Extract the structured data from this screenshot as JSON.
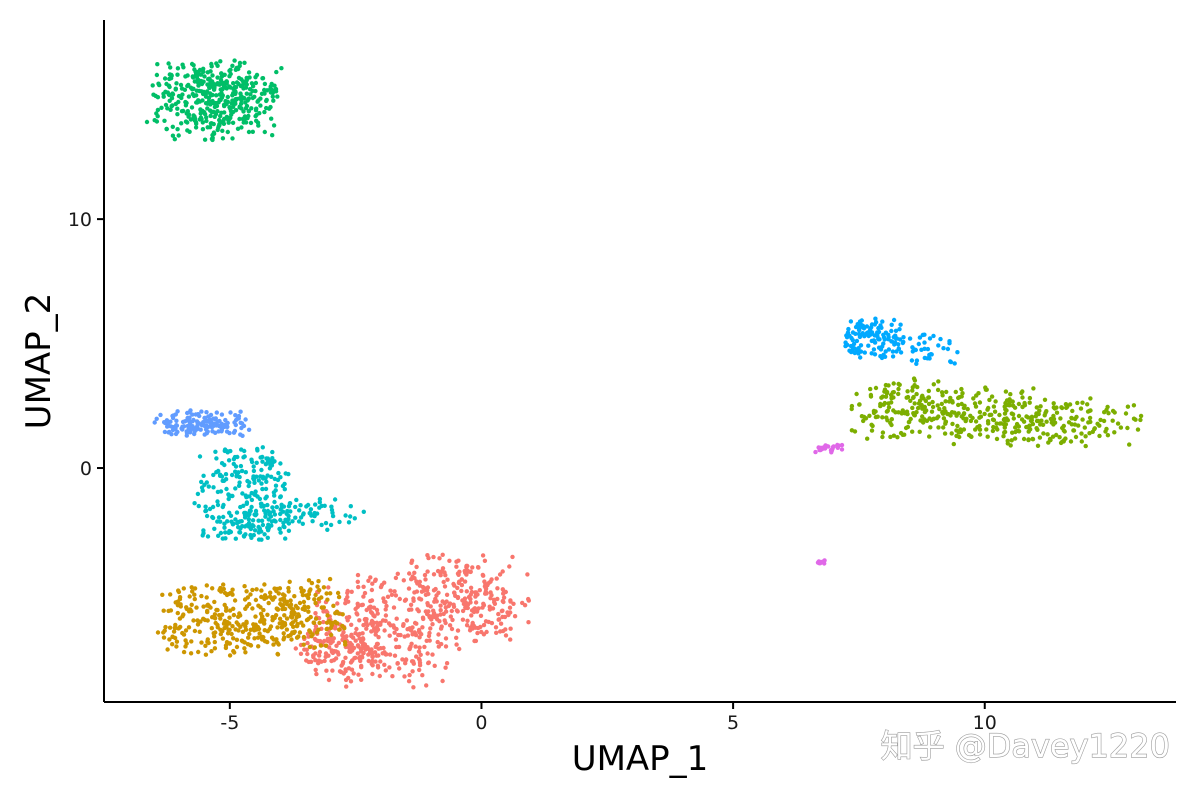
{
  "chart_data": {
    "type": "scatter",
    "title": "",
    "xlabel": "UMAP_1",
    "ylabel": "UMAP_2",
    "xlim": [
      -7.5,
      13.8
    ],
    "ylim": [
      -9.4,
      18.0
    ],
    "x_ticks": [
      -5,
      0,
      5,
      10
    ],
    "y_ticks": [
      0,
      10
    ],
    "x_tick_labels": [
      "-5",
      "0",
      "5",
      "10"
    ],
    "y_tick_labels": [
      "0",
      "10"
    ],
    "grid": false,
    "legend": "none",
    "series": [
      {
        "color": "#F8766D",
        "regions": [
          {
            "cx": -2.1,
            "cy": -6.5,
            "sx": 0.8,
            "sy": 1.3,
            "n": 320
          },
          {
            "cx": -0.3,
            "cy": -5.3,
            "sx": 0.7,
            "sy": 1.0,
            "n": 260
          },
          {
            "cx": -2.8,
            "cy": -7.3,
            "sx": 0.5,
            "sy": 0.4,
            "n": 90
          }
        ]
      },
      {
        "color": "#CD9600",
        "regions": [
          {
            "cx": -5.0,
            "cy": -6.1,
            "sx": 0.8,
            "sy": 0.8,
            "n": 260
          },
          {
            "cx": -3.6,
            "cy": -5.9,
            "sx": 0.5,
            "sy": 0.8,
            "n": 150
          }
        ]
      },
      {
        "color": "#7CAE00",
        "regions": [
          {
            "cx": 9.3,
            "cy": 2.2,
            "sx": 1.1,
            "sy": 0.6,
            "n": 230
          },
          {
            "cx": 11.5,
            "cy": 1.8,
            "sx": 0.9,
            "sy": 0.5,
            "n": 160
          },
          {
            "cx": 8.5,
            "cy": 2.9,
            "sx": 0.4,
            "sy": 0.4,
            "n": 50
          }
        ]
      },
      {
        "color": "#00BE67",
        "regions": [
          {
            "cx": -5.3,
            "cy": 14.8,
            "sx": 0.7,
            "sy": 0.9,
            "n": 420
          }
        ]
      },
      {
        "color": "#00BFC4",
        "regions": [
          {
            "cx": -4.7,
            "cy": -0.6,
            "sx": 0.55,
            "sy": 0.8,
            "n": 170
          },
          {
            "cx": -4.6,
            "cy": -2.3,
            "sx": 0.55,
            "sy": 0.35,
            "n": 110
          },
          {
            "cx": -3.2,
            "cy": -1.8,
            "sx": 0.5,
            "sy": 0.4,
            "n": 45
          }
        ]
      },
      {
        "color": "#00A9FF",
        "regions": [
          {
            "cx": 7.8,
            "cy": 5.2,
            "sx": 0.35,
            "sy": 0.45,
            "n": 120
          },
          {
            "cx": 8.7,
            "cy": 4.8,
            "sx": 0.4,
            "sy": 0.35,
            "n": 40
          }
        ]
      },
      {
        "color": "#619CFF",
        "regions": [
          {
            "cx": -5.5,
            "cy": 1.8,
            "sx": 0.5,
            "sy": 0.3,
            "n": 150
          }
        ]
      },
      {
        "color": "#E068E8",
        "regions": [
          {
            "cx": 6.9,
            "cy": 0.8,
            "sx": 0.2,
            "sy": 0.1,
            "n": 22
          },
          {
            "cx": 6.76,
            "cy": -3.8,
            "sx": 0.05,
            "sy": 0.05,
            "n": 8
          }
        ]
      }
    ]
  },
  "watermark_text": "知乎 @Davey1220"
}
